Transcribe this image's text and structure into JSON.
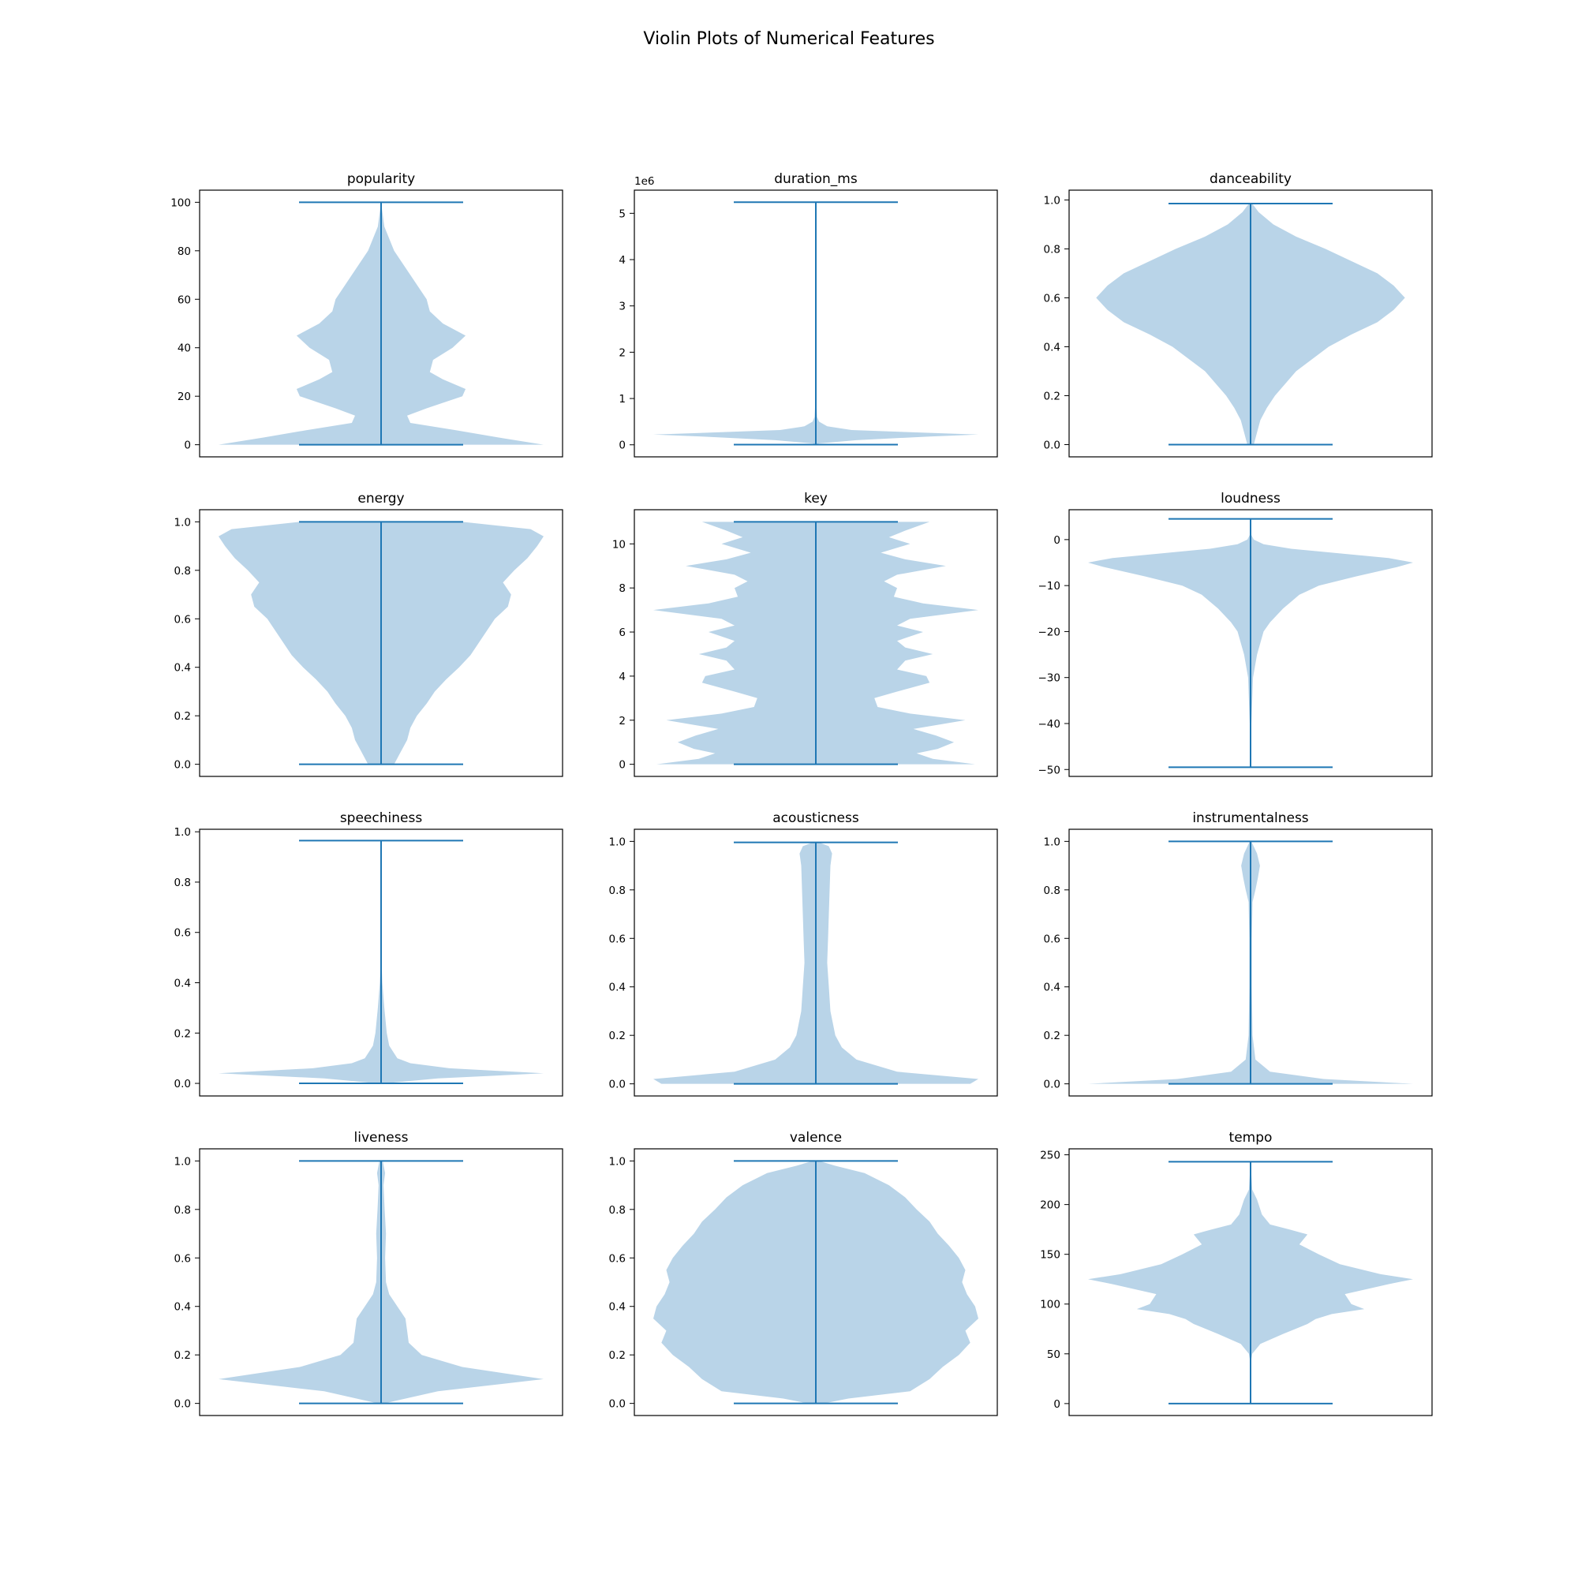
{
  "title": "Violin Plots of Numerical Features",
  "chart_data": [
    {
      "type": "violin",
      "title": "popularity",
      "ylim": [
        -5,
        105
      ],
      "yticks": [
        "0",
        "20",
        "40",
        "60",
        "80",
        "100"
      ],
      "ytick_values": [
        0,
        20,
        40,
        60,
        80,
        100
      ],
      "min": 0,
      "max": 100,
      "density": [
        [
          0,
          1.0
        ],
        [
          3,
          0.72
        ],
        [
          6,
          0.46
        ],
        [
          9,
          0.18
        ],
        [
          12,
          0.16
        ],
        [
          15,
          0.28
        ],
        [
          20,
          0.5
        ],
        [
          23,
          0.52
        ],
        [
          27,
          0.38
        ],
        [
          30,
          0.3
        ],
        [
          35,
          0.32
        ],
        [
          40,
          0.44
        ],
        [
          45,
          0.52
        ],
        [
          50,
          0.38
        ],
        [
          55,
          0.3
        ],
        [
          60,
          0.28
        ],
        [
          70,
          0.18
        ],
        [
          80,
          0.08
        ],
        [
          90,
          0.02
        ],
        [
          100,
          0.0
        ]
      ]
    },
    {
      "type": "violin",
      "title": "duration_ms",
      "offset_label": "1e6",
      "ylim": [
        -0.26,
        5.5
      ],
      "yticks": [
        "0",
        "1",
        "2",
        "3",
        "4",
        "5"
      ],
      "ytick_values": [
        0,
        1,
        2,
        3,
        4,
        5
      ],
      "min": 0.005,
      "max": 5.24,
      "density": [
        [
          0.005,
          0.0
        ],
        [
          0.03,
          0.02
        ],
        [
          0.1,
          0.25
        ],
        [
          0.18,
          0.7
        ],
        [
          0.22,
          1.0
        ],
        [
          0.27,
          0.6
        ],
        [
          0.32,
          0.22
        ],
        [
          0.4,
          0.07
        ],
        [
          0.5,
          0.02
        ],
        [
          0.6,
          0.008
        ],
        [
          1.0,
          0.002
        ],
        [
          5.24,
          0.0
        ]
      ]
    },
    {
      "type": "violin",
      "title": "danceability",
      "ylim": [
        -0.05,
        1.04
      ],
      "yticks": [
        "0.0",
        "0.2",
        "0.4",
        "0.6",
        "0.8",
        "1.0"
      ],
      "ytick_values": [
        0,
        0.2,
        0.4,
        0.6,
        0.8,
        1.0
      ],
      "min": 0,
      "max": 0.985,
      "density": [
        [
          0,
          0.02
        ],
        [
          0.05,
          0.04
        ],
        [
          0.1,
          0.06
        ],
        [
          0.15,
          0.1
        ],
        [
          0.2,
          0.15
        ],
        [
          0.3,
          0.28
        ],
        [
          0.35,
          0.38
        ],
        [
          0.4,
          0.48
        ],
        [
          0.45,
          0.62
        ],
        [
          0.5,
          0.78
        ],
        [
          0.55,
          0.88
        ],
        [
          0.6,
          0.95
        ],
        [
          0.65,
          0.88
        ],
        [
          0.7,
          0.78
        ],
        [
          0.75,
          0.62
        ],
        [
          0.8,
          0.46
        ],
        [
          0.85,
          0.28
        ],
        [
          0.9,
          0.14
        ],
        [
          0.95,
          0.05
        ],
        [
          0.985,
          0.01
        ]
      ]
    },
    {
      "type": "violin",
      "title": "energy",
      "ylim": [
        -0.05,
        1.05
      ],
      "yticks": [
        "0.0",
        "0.2",
        "0.4",
        "0.6",
        "0.8",
        "1.0"
      ],
      "ytick_values": [
        0,
        0.2,
        0.4,
        0.6,
        0.8,
        1.0
      ],
      "min": 0,
      "max": 1.0,
      "density": [
        [
          0,
          0.08
        ],
        [
          0.05,
          0.12
        ],
        [
          0.1,
          0.16
        ],
        [
          0.15,
          0.18
        ],
        [
          0.2,
          0.22
        ],
        [
          0.25,
          0.28
        ],
        [
          0.3,
          0.33
        ],
        [
          0.35,
          0.4
        ],
        [
          0.4,
          0.48
        ],
        [
          0.45,
          0.55
        ],
        [
          0.5,
          0.6
        ],
        [
          0.55,
          0.65
        ],
        [
          0.6,
          0.7
        ],
        [
          0.65,
          0.78
        ],
        [
          0.7,
          0.8
        ],
        [
          0.75,
          0.75
        ],
        [
          0.8,
          0.82
        ],
        [
          0.85,
          0.9
        ],
        [
          0.9,
          0.96
        ],
        [
          0.94,
          1.0
        ],
        [
          0.97,
          0.92
        ],
        [
          1.0,
          0.5
        ]
      ]
    },
    {
      "type": "violin",
      "title": "key",
      "ylim": [
        -0.55,
        11.55
      ],
      "yticks": [
        "0",
        "2",
        "4",
        "6",
        "8",
        "10"
      ],
      "ytick_values": [
        0,
        2,
        4,
        6,
        8,
        10
      ],
      "min": 0,
      "max": 11,
      "density": [
        [
          0,
          0.98
        ],
        [
          0.25,
          0.72
        ],
        [
          0.5,
          0.62
        ],
        [
          0.7,
          0.75
        ],
        [
          1.0,
          0.85
        ],
        [
          1.3,
          0.74
        ],
        [
          1.6,
          0.6
        ],
        [
          2.0,
          0.92
        ],
        [
          2.3,
          0.58
        ],
        [
          2.6,
          0.38
        ],
        [
          3.0,
          0.36
        ],
        [
          3.3,
          0.5
        ],
        [
          3.7,
          0.7
        ],
        [
          4.0,
          0.68
        ],
        [
          4.3,
          0.5
        ],
        [
          4.7,
          0.55
        ],
        [
          5.0,
          0.72
        ],
        [
          5.3,
          0.55
        ],
        [
          5.6,
          0.5
        ],
        [
          6.0,
          0.66
        ],
        [
          6.3,
          0.5
        ],
        [
          6.6,
          0.58
        ],
        [
          7.0,
          1.0
        ],
        [
          7.3,
          0.66
        ],
        [
          7.6,
          0.48
        ],
        [
          8.0,
          0.5
        ],
        [
          8.3,
          0.42
        ],
        [
          8.6,
          0.5
        ],
        [
          9.0,
          0.8
        ],
        [
          9.3,
          0.55
        ],
        [
          9.6,
          0.4
        ],
        [
          10.0,
          0.58
        ],
        [
          10.3,
          0.45
        ],
        [
          10.6,
          0.55
        ],
        [
          11.0,
          0.7
        ]
      ]
    },
    {
      "type": "violin",
      "title": "loudness",
      "ylim": [
        -51.5,
        6.5
      ],
      "yticks": [
        "0",
        "−10",
        "−20",
        "−30",
        "−40",
        "−50"
      ],
      "ytick_values": [
        0,
        -10,
        -20,
        -30,
        -40,
        -50
      ],
      "min": -49.5,
      "max": 4.5,
      "density": [
        [
          -49.5,
          0.0
        ],
        [
          -40,
          0.005
        ],
        [
          -35,
          0.01
        ],
        [
          -30,
          0.015
        ],
        [
          -25,
          0.04
        ],
        [
          -20,
          0.08
        ],
        [
          -18,
          0.12
        ],
        [
          -15,
          0.2
        ],
        [
          -12,
          0.3
        ],
        [
          -10,
          0.42
        ],
        [
          -8,
          0.65
        ],
        [
          -6,
          0.9
        ],
        [
          -5,
          1.0
        ],
        [
          -4,
          0.85
        ],
        [
          -3,
          0.55
        ],
        [
          -2,
          0.25
        ],
        [
          -1,
          0.08
        ],
        [
          0,
          0.02
        ],
        [
          1,
          0.005
        ],
        [
          4.5,
          0.0
        ]
      ]
    },
    {
      "type": "violin",
      "title": "speechiness",
      "ylim": [
        -0.05,
        1.01
      ],
      "yticks": [
        "0.0",
        "0.2",
        "0.4",
        "0.6",
        "0.8",
        "1.0"
      ],
      "ytick_values": [
        0,
        0.2,
        0.4,
        0.6,
        0.8,
        1.0
      ],
      "min": 0,
      "max": 0.965,
      "density": [
        [
          0,
          0.02
        ],
        [
          0.02,
          0.35
        ],
        [
          0.04,
          1.0
        ],
        [
          0.06,
          0.42
        ],
        [
          0.08,
          0.18
        ],
        [
          0.1,
          0.1
        ],
        [
          0.15,
          0.05
        ],
        [
          0.2,
          0.035
        ],
        [
          0.3,
          0.02
        ],
        [
          0.4,
          0.008
        ],
        [
          0.5,
          0.002
        ],
        [
          0.965,
          0.0
        ]
      ]
    },
    {
      "type": "violin",
      "title": "acousticness",
      "ylim": [
        -0.05,
        1.05
      ],
      "yticks": [
        "0.0",
        "0.2",
        "0.4",
        "0.6",
        "0.8",
        "1.0"
      ],
      "ytick_values": [
        0,
        0.2,
        0.4,
        0.6,
        0.8,
        1.0
      ],
      "min": 0,
      "max": 0.996,
      "density": [
        [
          0,
          0.95
        ],
        [
          0.02,
          1.0
        ],
        [
          0.05,
          0.5
        ],
        [
          0.1,
          0.25
        ],
        [
          0.15,
          0.16
        ],
        [
          0.2,
          0.12
        ],
        [
          0.3,
          0.09
        ],
        [
          0.4,
          0.08
        ],
        [
          0.5,
          0.07
        ],
        [
          0.6,
          0.075
        ],
        [
          0.7,
          0.08
        ],
        [
          0.8,
          0.085
        ],
        [
          0.9,
          0.09
        ],
        [
          0.95,
          0.1
        ],
        [
          0.98,
          0.08
        ],
        [
          0.996,
          0.02
        ]
      ]
    },
    {
      "type": "violin",
      "title": "instrumentalness",
      "ylim": [
        -0.05,
        1.05
      ],
      "yticks": [
        "0.0",
        "0.2",
        "0.4",
        "0.6",
        "0.8",
        "1.0"
      ],
      "ytick_values": [
        0,
        0.2,
        0.4,
        0.6,
        0.8,
        1.0
      ],
      "min": 0,
      "max": 1.0,
      "density": [
        [
          0,
          1.0
        ],
        [
          0.02,
          0.45
        ],
        [
          0.05,
          0.12
        ],
        [
          0.1,
          0.03
        ],
        [
          0.2,
          0.012
        ],
        [
          0.4,
          0.008
        ],
        [
          0.6,
          0.008
        ],
        [
          0.75,
          0.012
        ],
        [
          0.8,
          0.03
        ],
        [
          0.85,
          0.045
        ],
        [
          0.9,
          0.058
        ],
        [
          0.95,
          0.04
        ],
        [
          1.0,
          0.005
        ]
      ]
    },
    {
      "type": "violin",
      "title": "liveness",
      "ylim": [
        -0.05,
        1.05
      ],
      "yticks": [
        "0.0",
        "0.2",
        "0.4",
        "0.6",
        "0.8",
        "1.0"
      ],
      "ytick_values": [
        0,
        0.2,
        0.4,
        0.6,
        0.8,
        1.0
      ],
      "min": 0,
      "max": 1.0,
      "density": [
        [
          0,
          0.02
        ],
        [
          0.05,
          0.35
        ],
        [
          0.1,
          1.0
        ],
        [
          0.15,
          0.5
        ],
        [
          0.2,
          0.25
        ],
        [
          0.25,
          0.17
        ],
        [
          0.3,
          0.16
        ],
        [
          0.35,
          0.15
        ],
        [
          0.4,
          0.1
        ],
        [
          0.45,
          0.05
        ],
        [
          0.5,
          0.03
        ],
        [
          0.6,
          0.025
        ],
        [
          0.7,
          0.03
        ],
        [
          0.8,
          0.022
        ],
        [
          0.9,
          0.015
        ],
        [
          0.95,
          0.025
        ],
        [
          1.0,
          0.01
        ]
      ]
    },
    {
      "type": "violin",
      "title": "valence",
      "ylim": [
        -0.05,
        1.05
      ],
      "yticks": [
        "0.0",
        "0.2",
        "0.4",
        "0.6",
        "0.8",
        "1.0"
      ],
      "ytick_values": [
        0,
        0.2,
        0.4,
        0.6,
        0.8,
        1.0
      ],
      "min": 0,
      "max": 1.0,
      "density": [
        [
          0,
          0.05
        ],
        [
          0.02,
          0.2
        ],
        [
          0.05,
          0.58
        ],
        [
          0.1,
          0.7
        ],
        [
          0.15,
          0.78
        ],
        [
          0.2,
          0.88
        ],
        [
          0.25,
          0.95
        ],
        [
          0.3,
          0.92
        ],
        [
          0.35,
          1.0
        ],
        [
          0.4,
          0.98
        ],
        [
          0.45,
          0.93
        ],
        [
          0.5,
          0.9
        ],
        [
          0.55,
          0.92
        ],
        [
          0.6,
          0.88
        ],
        [
          0.65,
          0.82
        ],
        [
          0.7,
          0.75
        ],
        [
          0.75,
          0.7
        ],
        [
          0.8,
          0.62
        ],
        [
          0.85,
          0.55
        ],
        [
          0.9,
          0.45
        ],
        [
          0.95,
          0.3
        ],
        [
          0.98,
          0.12
        ],
        [
          1.0,
          0.02
        ]
      ]
    },
    {
      "type": "violin",
      "title": "tempo",
      "ylim": [
        -12,
        256
      ],
      "yticks": [
        "0",
        "50",
        "100",
        "150",
        "200",
        "250"
      ],
      "ytick_values": [
        0,
        50,
        100,
        150,
        200,
        250
      ],
      "min": 0,
      "max": 243,
      "density": [
        [
          0,
          0.0
        ],
        [
          40,
          0.0
        ],
        [
          50,
          0.01
        ],
        [
          60,
          0.06
        ],
        [
          70,
          0.2
        ],
        [
          80,
          0.35
        ],
        [
          85,
          0.4
        ],
        [
          90,
          0.5
        ],
        [
          95,
          0.7
        ],
        [
          100,
          0.62
        ],
        [
          110,
          0.58
        ],
        [
          120,
          0.85
        ],
        [
          125,
          1.0
        ],
        [
          130,
          0.8
        ],
        [
          140,
          0.55
        ],
        [
          150,
          0.42
        ],
        [
          160,
          0.3
        ],
        [
          170,
          0.35
        ],
        [
          175,
          0.24
        ],
        [
          180,
          0.12
        ],
        [
          190,
          0.07
        ],
        [
          200,
          0.05
        ],
        [
          205,
          0.04
        ],
        [
          215,
          0.01
        ],
        [
          243,
          0.0
        ]
      ]
    }
  ]
}
